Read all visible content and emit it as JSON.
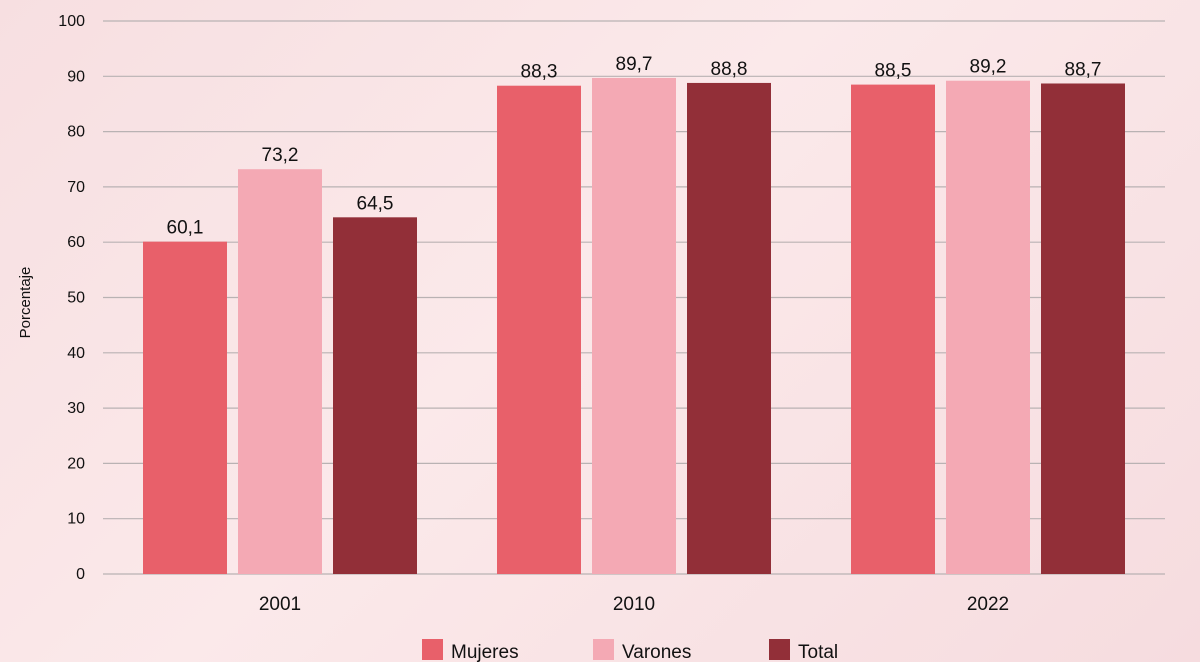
{
  "chart_data": {
    "type": "bar",
    "categories": [
      "2001",
      "2010",
      "2022"
    ],
    "series": [
      {
        "name": "Mujeres",
        "values": [
          60.1,
          88.3,
          88.5
        ],
        "color": "#e8606a"
      },
      {
        "name": "Varones",
        "values": [
          73.2,
          89.7,
          89.2
        ],
        "color": "#f4a9b4"
      },
      {
        "name": "Total",
        "values": [
          64.5,
          88.8,
          88.7
        ],
        "color": "#922f38"
      }
    ],
    "data_labels": [
      [
        "60,1",
        "73,2",
        "64,5"
      ],
      [
        "88,3",
        "89,7",
        "88,8"
      ],
      [
        "88,5",
        "89,2",
        "88,7"
      ]
    ],
    "yticks": [
      "0",
      "10",
      "20",
      "30",
      "40",
      "50",
      "60",
      "70",
      "80",
      "90",
      "100"
    ],
    "ylim": [
      0,
      100
    ],
    "ylabel": "Porcentaje",
    "xlabel": "",
    "title": "",
    "grid": true,
    "legend_position": "bottom"
  }
}
